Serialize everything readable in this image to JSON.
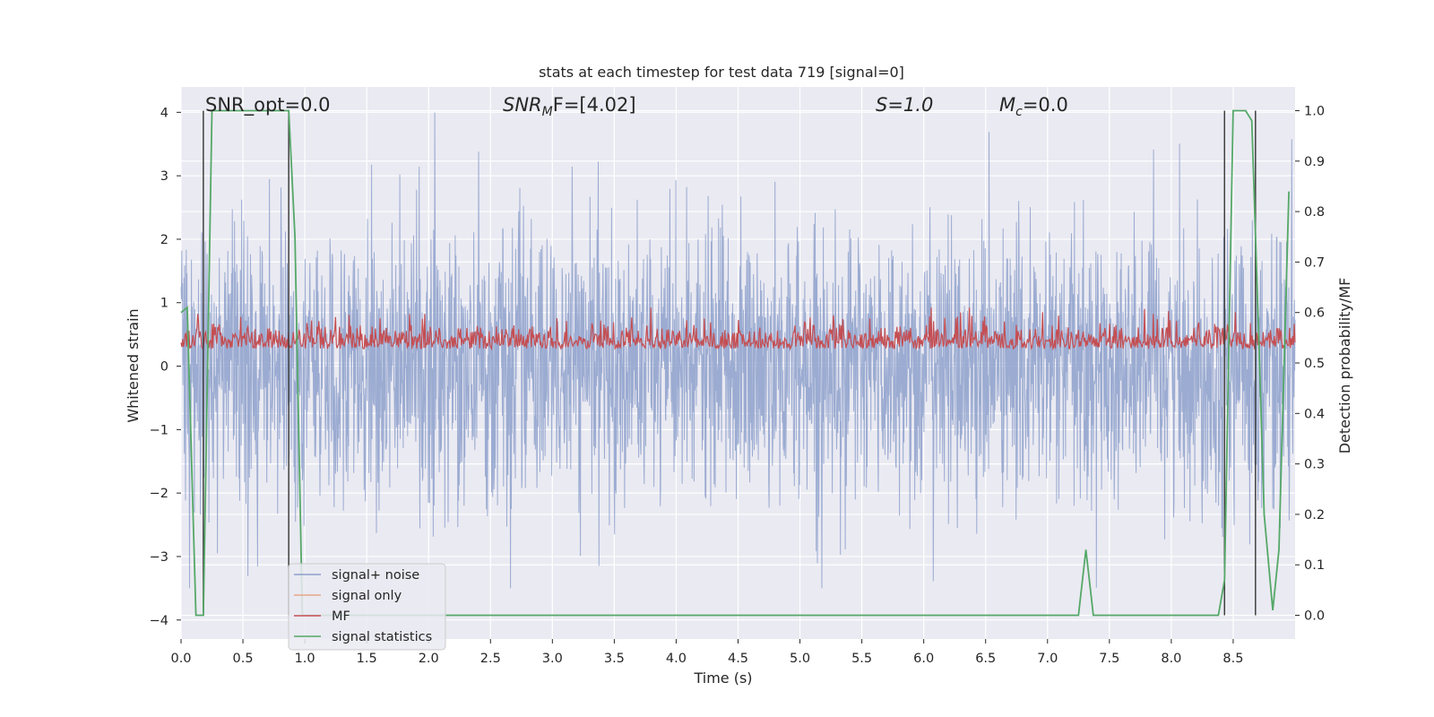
{
  "chart_data": {
    "type": "line",
    "title": "stats at each timestep for test data 719 [signal=0]",
    "xlabel": "Time (s)",
    "ylabel": "Whitened strain",
    "ylabel_right": "Detection probability/MF",
    "xlim": [
      0,
      9.0
    ],
    "ylim": [
      -4.3,
      4.4
    ],
    "ylim_right": [
      -0.047,
      1.047
    ],
    "grid": true,
    "x_ticks": [
      "0.0",
      "0.5",
      "1.0",
      "1.5",
      "2.0",
      "2.5",
      "3.0",
      "3.5",
      "4.0",
      "4.5",
      "5.0",
      "5.5",
      "6.0",
      "6.5",
      "7.0",
      "7.5",
      "8.0",
      "8.5"
    ],
    "y_ticks": [
      "−4",
      "−3",
      "−2",
      "−1",
      "0",
      "1",
      "2",
      "3",
      "4"
    ],
    "y_ticks_right": [
      "0.0",
      "0.1",
      "0.2",
      "0.3",
      "0.4",
      "0.5",
      "0.6",
      "0.7",
      "0.8",
      "0.9",
      "1.0"
    ],
    "annotations": {
      "snr_opt": "SNR_opt=0.0",
      "snr_mf_base": "SNR",
      "snr_mf_sub": "M",
      "snr_mf_rest": "F=[4.02]",
      "s": "S=1.0",
      "mc_base": "M",
      "mc_sub": "c",
      "mc_rest": "=0.0"
    },
    "legend_position": "lower-left",
    "series": [
      {
        "name": "signal+ noise",
        "color": "#8da0cb",
        "description_values": "noise band approx ±2 to ±3.5, peaks to 4.0 and -3.4"
      },
      {
        "name": "signal only",
        "color": "#e8a68a",
        "values": []
      },
      {
        "name": "MF",
        "color": "#c44e52",
        "axis": "right",
        "range": [
          0.5,
          0.6
        ]
      },
      {
        "name": "signal statistics",
        "color": "#55a868",
        "axis": "right",
        "x": [
          0.0,
          0.05,
          0.12,
          0.18,
          0.25,
          0.5,
          0.75,
          0.87,
          0.92,
          0.98,
          1.05,
          1.5,
          3,
          5,
          7.25,
          7.31,
          7.37,
          8.0,
          8.38,
          8.43,
          8.5,
          8.6,
          8.65,
          8.7,
          8.75,
          8.82,
          8.87,
          8.95
        ],
        "values": [
          0.6,
          0.61,
          0.0,
          0.0,
          1.0,
          1.0,
          1.0,
          1.0,
          0.75,
          0.0,
          0.0,
          0.0,
          0.0,
          0.0,
          0.0,
          0.13,
          0.0,
          0.0,
          0.0,
          0.07,
          1.0,
          1.0,
          0.98,
          0.6,
          0.2,
          0.01,
          0.13,
          0.84
        ]
      }
    ],
    "vertical_lines_x": [
      0.18,
      0.87,
      8.43,
      8.68
    ]
  },
  "legend": {
    "items": [
      "signal+ noise",
      "signal only",
      "MF",
      "signal statistics"
    ]
  }
}
